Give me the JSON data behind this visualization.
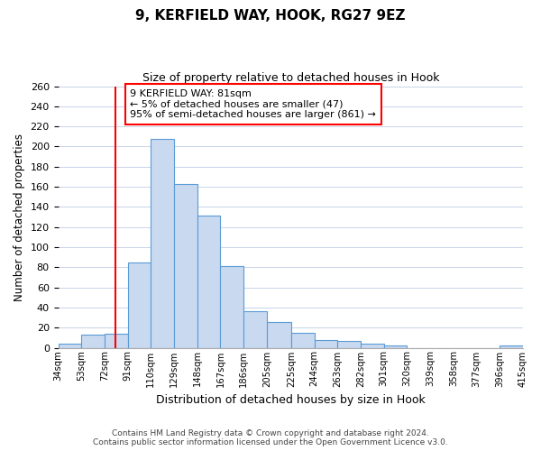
{
  "title": "9, KERFIELD WAY, HOOK, RG27 9EZ",
  "subtitle": "Size of property relative to detached houses in Hook",
  "xlabel": "Distribution of detached houses by size in Hook",
  "ylabel": "Number of detached properties",
  "bin_edges": [
    34,
    53,
    72,
    91,
    110,
    129,
    148,
    167,
    186,
    205,
    225,
    244,
    263,
    282,
    301,
    320,
    339,
    358,
    377,
    396,
    415
  ],
  "bar_heights": [
    4,
    13,
    14,
    85,
    208,
    163,
    131,
    81,
    36,
    26,
    15,
    8,
    7,
    4,
    2,
    0,
    0,
    0,
    0,
    2
  ],
  "bar_color": "#c9d9f0",
  "bar_edge_color": "#5b9bd5",
  "ylim": [
    0,
    260
  ],
  "yticks": [
    0,
    20,
    40,
    60,
    80,
    100,
    120,
    140,
    160,
    180,
    200,
    220,
    240,
    260
  ],
  "xtick_labels": [
    "34sqm",
    "53sqm",
    "72sqm",
    "91sqm",
    "110sqm",
    "129sqm",
    "148sqm",
    "167sqm",
    "186sqm",
    "205sqm",
    "225sqm",
    "244sqm",
    "263sqm",
    "282sqm",
    "301sqm",
    "320sqm",
    "339sqm",
    "358sqm",
    "377sqm",
    "396sqm",
    "415sqm"
  ],
  "red_line_x": 81,
  "annotation_line1": "9 KERFIELD WAY: 81sqm",
  "annotation_line2": "← 5% of detached houses are smaller (47)",
  "annotation_line3": "95% of semi-detached houses are larger (861) →",
  "footer_line1": "Contains HM Land Registry data © Crown copyright and database right 2024.",
  "footer_line2": "Contains public sector information licensed under the Open Government Licence v3.0.",
  "bg_color": "#ffffff",
  "grid_color": "#c8d4e8"
}
